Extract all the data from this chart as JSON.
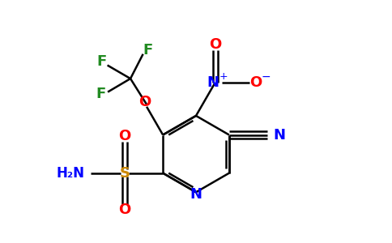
{
  "bg_color": "#ffffff",
  "atom_colors": {
    "C": "#000000",
    "N": "#0000ff",
    "O": "#ff0000",
    "S": "#cc8800",
    "F": "#228b22"
  },
  "bond_color": "#000000",
  "bond_width": 1.8,
  "xlim": [
    -2.5,
    5.5
  ],
  "ylim": [
    -1.8,
    4.5
  ]
}
